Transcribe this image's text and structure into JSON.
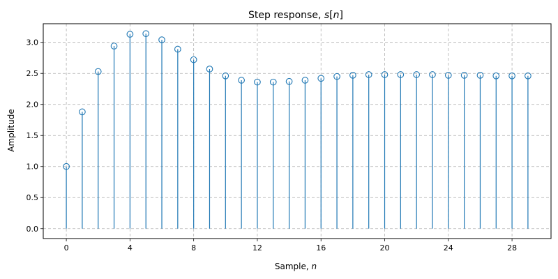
{
  "chart_data": {
    "type": "stem",
    "title": "Step response, s[n]",
    "title_parts": {
      "prefix": "Step response, ",
      "math": "s",
      "open": "[",
      "var": "n",
      "close": "]"
    },
    "xlabel": "Sample, n",
    "xlabel_parts": {
      "prefix": "Sample, ",
      "var": "n"
    },
    "ylabel": "Amplitude",
    "x_ticks": [
      0,
      4,
      8,
      12,
      16,
      20,
      24,
      28
    ],
    "x_tick_labels": [
      "0",
      "4",
      "8",
      "12",
      "16",
      "20",
      "24",
      "28"
    ],
    "y_ticks": [
      0.0,
      0.5,
      1.0,
      1.5,
      2.0,
      2.5,
      3.0
    ],
    "y_tick_labels": [
      "0.0",
      "0.5",
      "1.0",
      "1.5",
      "2.0",
      "2.5",
      "3.0"
    ],
    "xlim": [
      -1.45,
      30.45
    ],
    "ylim": [
      -0.16,
      3.3
    ],
    "grid": true,
    "color": "#1f77b4",
    "x": [
      0,
      1,
      2,
      3,
      4,
      5,
      6,
      7,
      8,
      9,
      10,
      11,
      12,
      13,
      14,
      15,
      16,
      17,
      18,
      19,
      20,
      21,
      22,
      23,
      24,
      25,
      26,
      27,
      28,
      29
    ],
    "values": [
      1.0,
      1.88,
      2.53,
      2.94,
      3.13,
      3.14,
      3.04,
      2.89,
      2.72,
      2.57,
      2.46,
      2.39,
      2.36,
      2.36,
      2.37,
      2.39,
      2.42,
      2.45,
      2.47,
      2.48,
      2.48,
      2.48,
      2.48,
      2.48,
      2.47,
      2.47,
      2.47,
      2.46,
      2.46,
      2.46
    ]
  }
}
